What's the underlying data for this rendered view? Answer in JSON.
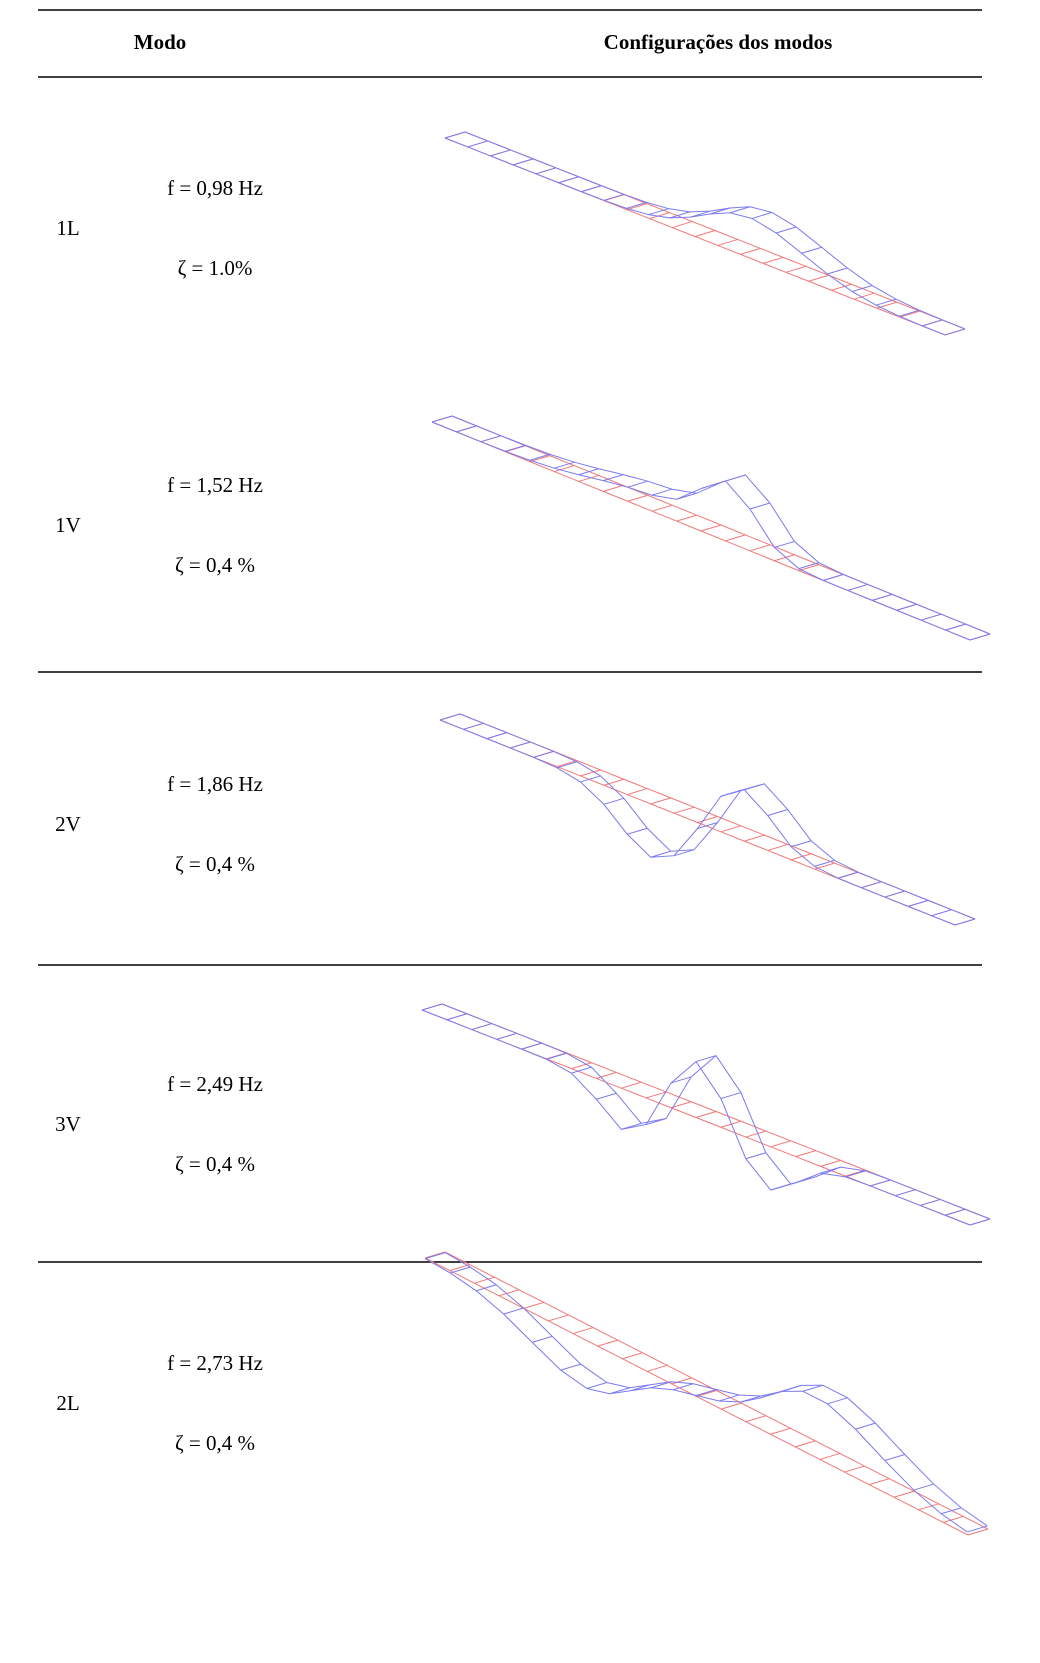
{
  "header": {
    "mode": "Modo",
    "configuration": "Configurações dos modos"
  },
  "rows": [
    {
      "mode": "1L",
      "frequency": "f = 0,98 Hz",
      "damping": "ζ = 1.0%"
    },
    {
      "mode": "1V",
      "frequency": "f = 1,52 Hz",
      "damping": "ζ = 0,4 %"
    },
    {
      "mode": "2V",
      "frequency": "f = 1,86 Hz",
      "damping": "ζ = 0,4 %"
    },
    {
      "mode": "3V",
      "frequency": "f = 2,49 Hz",
      "damping": "ζ = 0,4 %"
    },
    {
      "mode": "2L",
      "frequency": "f = 2,73 Hz",
      "damping": "ζ = 0,4 %"
    }
  ]
}
